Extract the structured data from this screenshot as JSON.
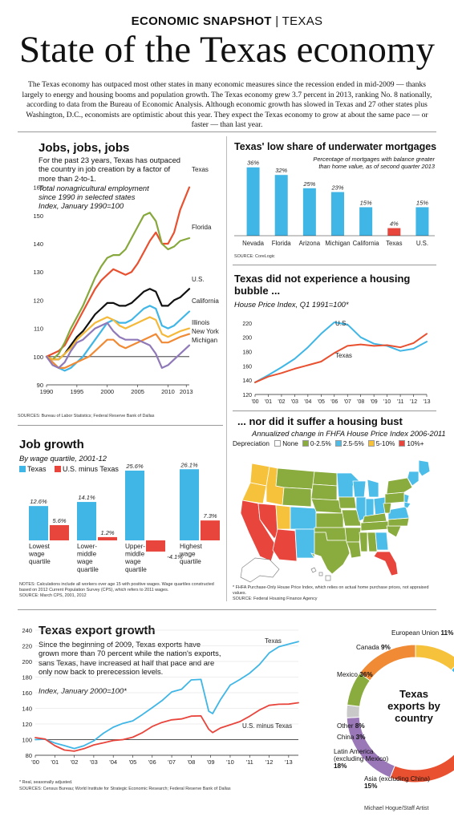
{
  "header": {
    "kicker_bold": "ECONOMIC SNAPSHOT",
    "kicker_sep": " | ",
    "kicker_rest": "TEXAS",
    "title": "State of the Texas economy",
    "intro": "The Texas economy has outpaced most other states in many economic measures since the recession ended in mid-2009 — thanks largely to energy and housing booms and population growth. The Texas economy grew 3.7 percent in 2013, ranking No. 8 nationally, according to data from the Bureau of Economic Analysis. Although economic growth has slowed in Texas and 27 other states plus Washington, D.C., economists are optimistic about this year. They expect the Texas economy to grow at about the same pace — or faster — than last year."
  },
  "jobs": {
    "title": "Jobs, jobs, jobs",
    "desc": "For the past 23 years, Texas has outpaced the country in job creation by a factor of more than 2-to-1.",
    "subtitle": "Total nonagricultural employment since 1990 in selected states",
    "index_note": "Index, January 1990=100",
    "source": "SOURCES: Bureau of Labor Statistics; Federal Reserve Bank of Dallas"
  },
  "mortgages": {
    "title": "Texas' low share of underwater mortgages",
    "subtitle": "Percentage of mortgages with balance greater than home value, as of second quarter 2013",
    "source": "SOURCE: CoreLogic"
  },
  "bubble": {
    "title": "Texas did not experience a housing bubble ...",
    "subtitle": "House Price Index, Q1 1991=100*"
  },
  "bust": {
    "title": "... nor did it suffer a housing bust",
    "subtitle": "Annualized change in FHFA House Price Index 2006-2011",
    "legend_title": "Depreciation",
    "legend": [
      {
        "label": "None",
        "color": "#ffffff"
      },
      {
        "label": "0-2.5%",
        "color": "#8aab3e"
      },
      {
        "label": "2.5-5%",
        "color": "#4bbde8"
      },
      {
        "label": "5-10%",
        "color": "#f6c23c"
      },
      {
        "label": "10%+",
        "color": "#e8453c"
      }
    ],
    "footnote": "* FHFA Purchase-Only House Price Index, which relies on actual home purchase prices, not appraised values.",
    "source": "SOURCE: Federal Housing Finance Agency"
  },
  "jobgrowth": {
    "title": "Job growth",
    "subtitle": "By wage quartile, 2001-12",
    "notes": "NOTES: Calculations include all workers over age 15 with positive wages. Wage quartiles constructed based on 2012 Current Population Survey (CPS), which refers to 2011 wages.",
    "source": "SOURCE: March CPS, 2001, 2012"
  },
  "exports": {
    "title": "Texas export growth",
    "desc": "Since the beginning of 2009, Texas exports have grown more than 70 percent while the nation's exports, sans Texas, have increased at half that pace and are only now back to prerecession levels.",
    "index_note": "Index, January 2000=100*",
    "footnote": "* Real, seasonally adjusted.",
    "source": "SOURCES: Census Bureau; World Institute for Strategic Economic Research; Federal Reserve Bank of Dallas"
  },
  "donut": {
    "center_title": "Texas exports by country"
  },
  "credit": "Michael Hogue/Staff Artist",
  "chart_data": [
    {
      "id": "jobs",
      "type": "line",
      "x_ticks": [
        "1990",
        "1995",
        "2000",
        "2005",
        "2010",
        "2013"
      ],
      "ylim": [
        90,
        165
      ],
      "y_ticks": [
        90,
        100,
        110,
        120,
        130,
        140,
        150,
        160
      ],
      "x": [
        1990,
        1991,
        1992,
        1993,
        1994,
        1995,
        1996,
        1997,
        1998,
        1999,
        2000,
        2001,
        2002,
        2003,
        2004,
        2005,
        2006,
        2007,
        2008,
        2009,
        2010,
        2011,
        2012,
        2013.5
      ],
      "series": [
        {
          "name": "Texas",
          "color": "#e8502f",
          "values": [
            100,
            101,
            102,
            104,
            108,
            112,
            116,
            120,
            124,
            127,
            129,
            131,
            130,
            129,
            130,
            133,
            137,
            141,
            144,
            140,
            140,
            144,
            152,
            160
          ]
        },
        {
          "name": "Florida",
          "color": "#86a83c",
          "values": [
            100,
            99,
            101,
            105,
            110,
            114,
            118,
            123,
            128,
            132,
            135,
            136,
            136,
            138,
            142,
            146,
            150,
            151,
            148,
            140,
            138,
            139,
            141,
            142
          ]
        },
        {
          "name": "U.S.",
          "color": "#111111",
          "values": [
            100,
            99,
            99,
            101,
            104,
            107,
            109,
            112,
            115,
            117,
            119,
            119,
            118,
            118,
            119,
            121,
            123,
            124,
            123,
            118,
            118,
            120,
            121,
            124
          ]
        },
        {
          "name": "California",
          "color": "#3fb6e6",
          "values": [
            100,
            98,
            96,
            95,
            96,
            98,
            100,
            103,
            106,
            109,
            112,
            113,
            112,
            112,
            113,
            115,
            117,
            118,
            117,
            111,
            110,
            111,
            113,
            116
          ]
        },
        {
          "name": "Illinois",
          "color": "#f5b93a",
          "values": [
            100,
            99,
            99,
            101,
            103,
            106,
            108,
            110,
            112,
            113,
            114,
            113,
            111,
            110,
            111,
            112,
            113,
            114,
            113,
            108,
            107,
            108,
            109,
            110
          ]
        },
        {
          "name": "New York",
          "color": "#f08a35",
          "values": [
            100,
            98,
            96,
            96,
            97,
            98,
            99,
            100,
            102,
            104,
            106,
            106,
            104,
            103,
            104,
            105,
            106,
            107,
            108,
            105,
            105,
            106,
            107,
            108
          ]
        },
        {
          "name": "Michigan",
          "color": "#8f79b9",
          "values": [
            100,
            97,
            96,
            98,
            102,
            105,
            106,
            108,
            110,
            111,
            112,
            109,
            107,
            106,
            106,
            106,
            105,
            104,
            101,
            96,
            97,
            99,
            101,
            104
          ]
        }
      ]
    },
    {
      "id": "mortgages",
      "type": "bar",
      "categories": [
        "Nevada",
        "Florida",
        "Arizona",
        "Michigan",
        "California",
        "Texas",
        "U.S."
      ],
      "values": [
        36,
        32,
        25,
        23,
        15,
        4,
        15
      ],
      "labels": [
        "36%",
        "32%",
        "25%",
        "23%",
        "15%",
        "4%",
        "15%"
      ],
      "colors": [
        "#3fb6e6",
        "#3fb6e6",
        "#3fb6e6",
        "#3fb6e6",
        "#3fb6e6",
        "#e8453c",
        "#3fb6e6"
      ],
      "ylim": [
        0,
        38
      ]
    },
    {
      "id": "bubble",
      "type": "line",
      "x_ticks": [
        "'00",
        "'01",
        "'02",
        "'03",
        "'04",
        "'05",
        "'06",
        "'07",
        "'08",
        "'09",
        "'10",
        "'11",
        "'12",
        "'13"
      ],
      "ylim": [
        120,
        230
      ],
      "y_ticks": [
        120,
        140,
        160,
        180,
        200,
        220
      ],
      "x": [
        2000,
        2001,
        2002,
        2003,
        2004,
        2005,
        2006,
        2007,
        2008,
        2009,
        2010,
        2011,
        2012,
        2013
      ],
      "series": [
        {
          "name": "U.S.",
          "color": "#3fb6e6",
          "values": [
            137,
            147,
            158,
            170,
            186,
            205,
            221,
            218,
            200,
            191,
            188,
            181,
            184,
            194
          ]
        },
        {
          "name": "Texas",
          "color": "#e8502f",
          "values": [
            137,
            145,
            150,
            156,
            161,
            166,
            178,
            188,
            190,
            188,
            189,
            186,
            192,
            205
          ]
        }
      ]
    },
    {
      "id": "jobgrowth",
      "type": "bar",
      "categories": [
        "Lowest wage quartile",
        "Lower-middle wage quartile",
        "Upper-middle wage quartile",
        "Highest wage quartile"
      ],
      "category_lines": [
        [
          "Lowest",
          "wage",
          "quartile"
        ],
        [
          "Lower-",
          "middle",
          "wage",
          "quartile"
        ],
        [
          "Upper-",
          "middle",
          "wage",
          "quartile"
        ],
        [
          "Highest",
          "wage",
          "quartile"
        ]
      ],
      "series": [
        {
          "name": "Texas",
          "color": "#3fb6e6",
          "values": [
            12.6,
            14.1,
            25.6,
            26.1
          ],
          "labels": [
            "12.6%",
            "14.1%",
            "25.6%",
            "26.1%"
          ]
        },
        {
          "name": "U.S. minus Texas",
          "color": "#e8453c",
          "values": [
            5.6,
            1.2,
            -4.1,
            7.3
          ],
          "labels": [
            "5.6%",
            "1.2%",
            "-4.1%",
            "7.3%"
          ]
        }
      ]
    },
    {
      "id": "exports",
      "type": "line",
      "x_ticks": [
        "'00",
        "'01",
        "'02",
        "'03",
        "'04",
        "'05",
        "'06",
        "'07",
        "'08",
        "'09",
        "'10",
        "'11",
        "'12",
        "'13"
      ],
      "ylim": [
        80,
        240
      ],
      "y_ticks": [
        80,
        100,
        120,
        140,
        160,
        180,
        200,
        220,
        240
      ],
      "x": [
        2000,
        2000.5,
        2001,
        2001.5,
        2002,
        2002.5,
        2003,
        2003.5,
        2004,
        2004.5,
        2005,
        2005.5,
        2006,
        2006.5,
        2007,
        2007.5,
        2008,
        2008.5,
        2008.9,
        2009.1,
        2009.5,
        2010,
        2010.5,
        2011,
        2011.5,
        2012,
        2012.5,
        2013,
        2013.5
      ],
      "series": [
        {
          "name": "Texas",
          "color": "#3fb6e6",
          "values": [
            100,
            98,
            93,
            92,
            91,
            95,
            99,
            106,
            113,
            120,
            126,
            135,
            142,
            148,
            158,
            163,
            178,
            180,
            138,
            132,
            148,
            168,
            178,
            188,
            198,
            210,
            216,
            220,
            226
          ]
        },
        {
          "name": "U.S. minus Texas",
          "color": "#e8453c",
          "values": [
            100,
            98,
            92,
            89,
            88,
            89,
            91,
            93,
            98,
            102,
            106,
            110,
            115,
            119,
            124,
            128,
            133,
            132,
            112,
            106,
            113,
            120,
            126,
            132,
            137,
            141,
            143,
            146,
            150
          ]
        }
      ]
    },
    {
      "id": "exports_by_country",
      "type": "pie",
      "title": "Texas exports by country",
      "slices": [
        {
          "name": "European Union",
          "label": "European Union",
          "pct_label": "11%",
          "value": 11,
          "color": "#f6c23c"
        },
        {
          "name": "Canada",
          "label": "Canada",
          "pct_label": "9%",
          "value": 9,
          "color": "#3fb6e6"
        },
        {
          "name": "Mexico",
          "label": "Mexico",
          "pct_label": "36%",
          "value": 36,
          "color": "#e8502f"
        },
        {
          "name": "Latin America (excluding Mexico)",
          "label": "Latin America (excluding Mexico)",
          "pct_label": "18%",
          "value": 18,
          "color": "#9a78b8"
        },
        {
          "name": "China",
          "label": "China",
          "pct_label": "3%",
          "value": 3,
          "color": "#c9c9c9"
        },
        {
          "name": "Other",
          "label": "Other",
          "pct_label": "8%",
          "value": 8,
          "color": "#8aab3e"
        },
        {
          "name": "Asia (excluding China)",
          "label": "Asia (excluding China)",
          "pct_label": "15%",
          "value": 15,
          "color": "#f08a35"
        }
      ]
    }
  ]
}
